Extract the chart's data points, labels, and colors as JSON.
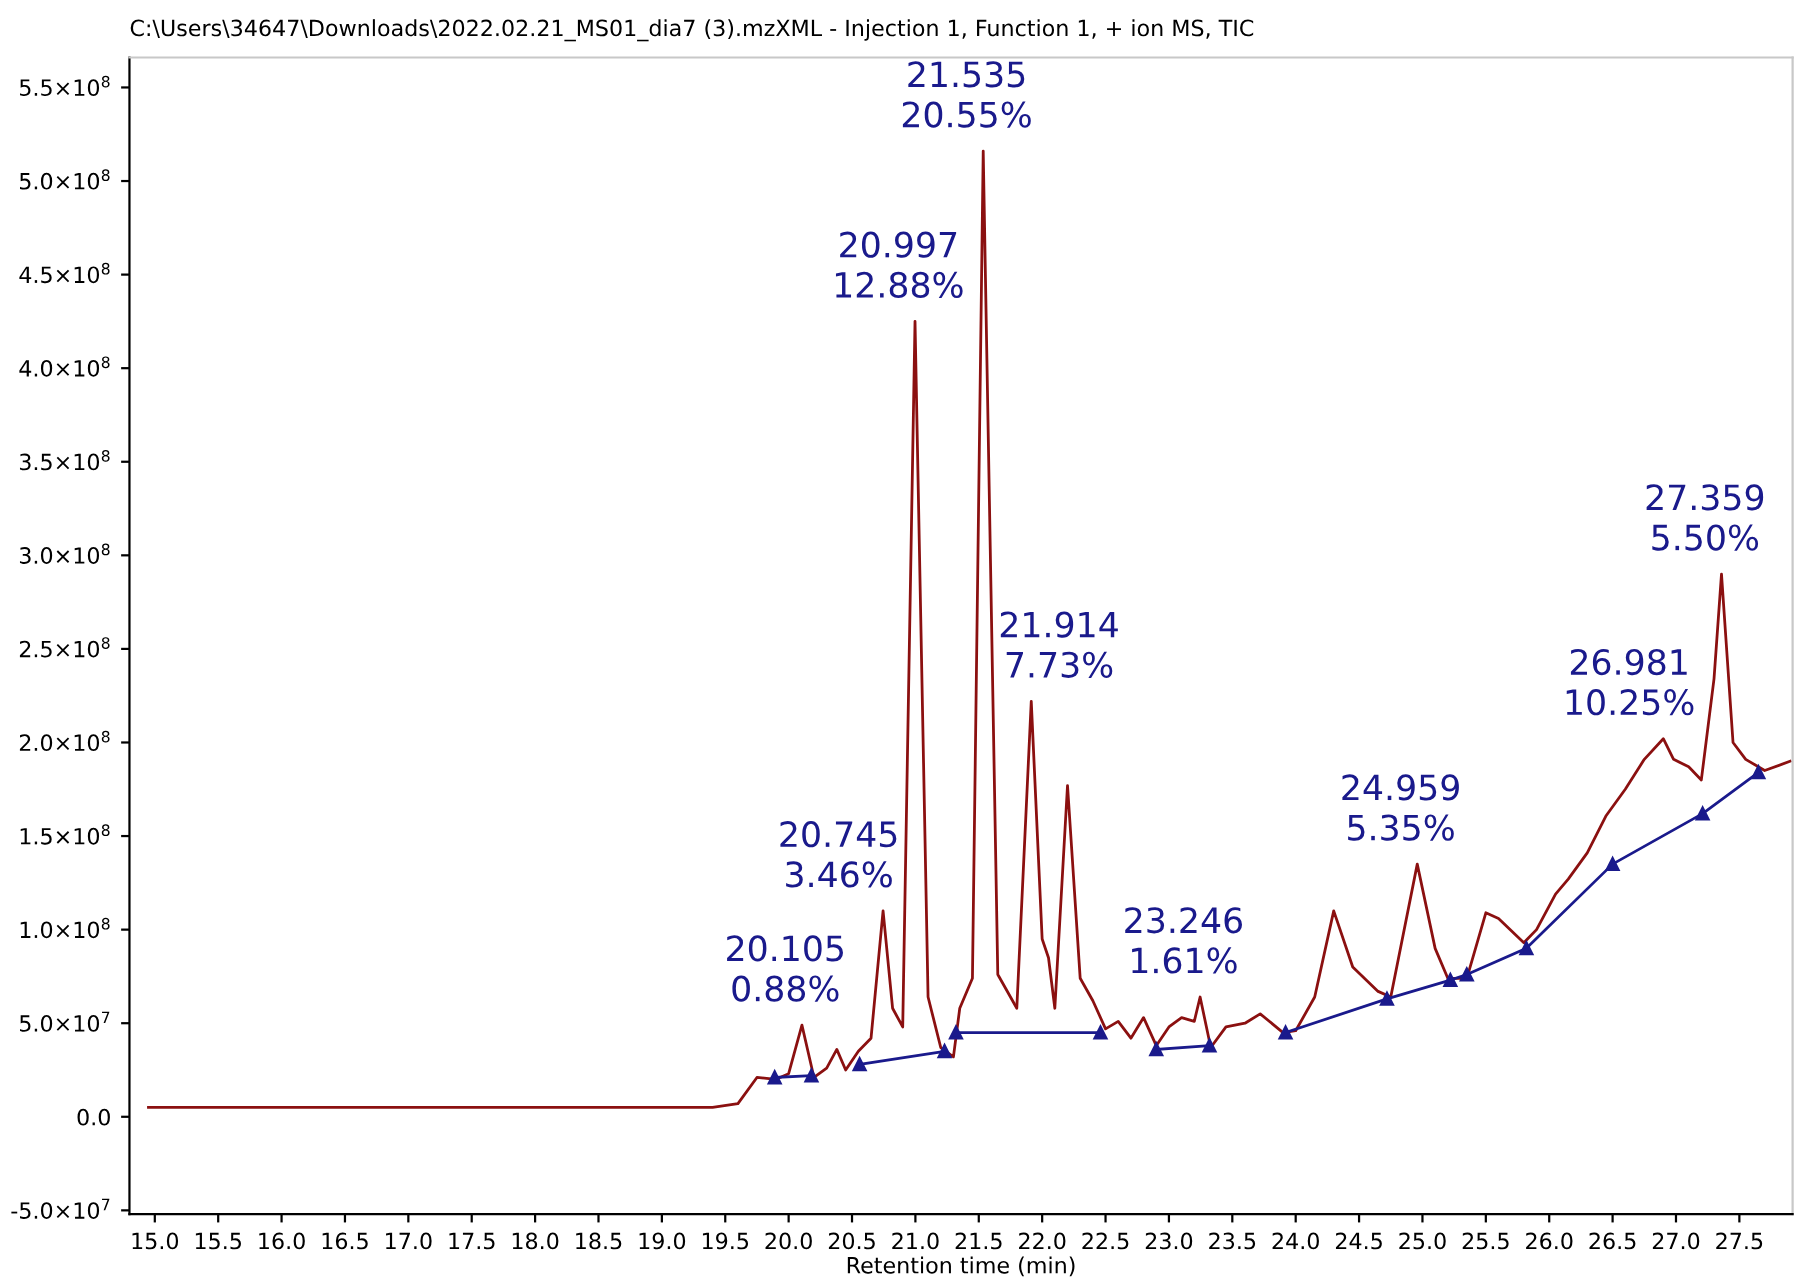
{
  "chart_data": {
    "type": "line",
    "title": "C:\\Users\\34647\\Downloads\\2022.02.21_MS01_dia7 (3).mzXML - Injection 1, Function 1, + ion MS, TIC",
    "xlabel": "Retention time (min)",
    "xlim": [
      14.8,
      27.92
    ],
    "ylim": [
      -52000000.0,
      566000000.0
    ],
    "xticks": [
      {
        "value": 15.0,
        "label": "15.0"
      },
      {
        "value": 15.5,
        "label": "15.5"
      },
      {
        "value": 16.0,
        "label": "16.0"
      },
      {
        "value": 16.5,
        "label": "16.5"
      },
      {
        "value": 17.0,
        "label": "17.0"
      },
      {
        "value": 17.5,
        "label": "17.5"
      },
      {
        "value": 18.0,
        "label": "18.0"
      },
      {
        "value": 18.5,
        "label": "18.5"
      },
      {
        "value": 19.0,
        "label": "19.0"
      },
      {
        "value": 19.5,
        "label": "19.5"
      },
      {
        "value": 20.0,
        "label": "20.0"
      },
      {
        "value": 20.5,
        "label": "20.5"
      },
      {
        "value": 21.0,
        "label": "21.0"
      },
      {
        "value": 21.5,
        "label": "21.5"
      },
      {
        "value": 22.0,
        "label": "22.0"
      },
      {
        "value": 22.5,
        "label": "22.5"
      },
      {
        "value": 23.0,
        "label": "23.0"
      },
      {
        "value": 23.5,
        "label": "23.5"
      },
      {
        "value": 24.0,
        "label": "24.0"
      },
      {
        "value": 24.5,
        "label": "24.5"
      },
      {
        "value": 25.0,
        "label": "25.0"
      },
      {
        "value": 25.5,
        "label": "25.5"
      },
      {
        "value": 26.0,
        "label": "26.0"
      },
      {
        "value": 26.5,
        "label": "26.5"
      },
      {
        "value": 27.0,
        "label": "27.0"
      },
      {
        "value": 27.5,
        "label": "27.5"
      }
    ],
    "yticks": [
      {
        "value": -50000000.0,
        "label": "-5.0×10$^{7}$"
      },
      {
        "value": 0,
        "label": "0.0"
      },
      {
        "value": 50000000.0,
        "label": "5.0×10$^{7}$"
      },
      {
        "value": 100000000.0,
        "label": "1.0×10$^{8}$"
      },
      {
        "value": 150000000.0,
        "label": "1.5×10$^{8}$"
      },
      {
        "value": 200000000.0,
        "label": "2.0×10$^{8}$"
      },
      {
        "value": 250000000.0,
        "label": "2.5×10$^{8}$"
      },
      {
        "value": 300000000.0,
        "label": "3.0×10$^{8}$"
      },
      {
        "value": 350000000.0,
        "label": "3.5×10$^{8}$"
      },
      {
        "value": 400000000.0,
        "label": "4.0×10$^{8}$"
      },
      {
        "value": 450000000.0,
        "label": "4.5×10$^{8}$"
      },
      {
        "value": 500000000.0,
        "label": "5.0×10$^{8}$"
      },
      {
        "value": 550000000.0,
        "label": "5.5×10$^{8}$"
      }
    ],
    "grid": false,
    "legend": false,
    "series": [
      {
        "color": "#8b1010",
        "x": [
          14.95,
          15.5,
          16.0,
          16.5,
          17.0,
          17.5,
          18.0,
          18.5,
          19.0,
          19.4,
          19.6,
          19.75,
          19.9,
          20.0,
          20.105,
          20.2,
          20.3,
          20.38,
          20.45,
          20.55,
          20.65,
          20.745,
          20.82,
          20.9,
          20.997,
          21.1,
          21.2,
          21.3,
          21.35,
          21.45,
          21.535,
          21.65,
          21.75,
          21.8,
          21.914,
          22.0,
          22.05,
          22.1,
          22.2,
          22.3,
          22.4,
          22.5,
          22.6,
          22.7,
          22.8,
          22.9,
          23.0,
          23.1,
          23.2,
          23.246,
          23.33,
          23.45,
          23.6,
          23.72,
          23.9,
          24.0,
          24.15,
          24.3,
          24.45,
          24.65,
          24.75,
          24.959,
          25.1,
          25.2,
          25.35,
          25.5,
          25.6,
          25.8,
          25.9,
          26.05,
          26.15,
          26.3,
          26.45,
          26.6,
          26.75,
          26.9,
          26.981,
          27.1,
          27.2,
          27.3,
          27.359,
          27.45,
          27.55,
          27.7,
          27.9
        ],
        "values": [
          5000000.0,
          5000000.0,
          5000000.0,
          5000000.0,
          5000000.0,
          5000000.0,
          5000000.0,
          5000000.0,
          5000000.0,
          5000000.0,
          7000000.0,
          21000000.0,
          20000000.0,
          23000000.0,
          49000000.0,
          21000000.0,
          26000000.0,
          36000000.0,
          25000000.0,
          35000000.0,
          42000000.0,
          110000000.0,
          58000000.0,
          48000000.0,
          425000000.0,
          64000000.0,
          37000000.0,
          32000000.0,
          58000000.0,
          74000000.0,
          516000000.0,
          76000000.0,
          64000000.0,
          58000000.0,
          222000000.0,
          95000000.0,
          85000000.0,
          58000000.0,
          177000000.0,
          74000000.0,
          62000000.0,
          47000000.0,
          51000000.0,
          42000000.0,
          53000000.0,
          38000000.0,
          48000000.0,
          53000000.0,
          51000000.0,
          64000000.0,
          37000000.0,
          48000000.0,
          50000000.0,
          55000000.0,
          45000000.0,
          46000000.0,
          64000000.0,
          110000000.0,
          80000000.0,
          67000000.0,
          64000000.0,
          135000000.0,
          90000000.0,
          74000000.0,
          74000000.0,
          109000000.0,
          106000000.0,
          93000000.0,
          100000000.0,
          119000000.0,
          127000000.0,
          141000000.0,
          161000000.0,
          175000000.0,
          191000000.0,
          202000000.0,
          191000000.0,
          187000000.0,
          180000000.0,
          234000000.0,
          290000000.0,
          200000000.0,
          191000000.0,
          185000000.0,
          190000000.0
        ]
      },
      {
        "color": "#1a1a8c",
        "marker": "triangle",
        "x": [
          19.89,
          20.18,
          20.19,
          20.56,
          21.23,
          21.24,
          21.32,
          22.46,
          22.47,
          22.9,
          23.32,
          23.33,
          23.92,
          24.72,
          25.22,
          25.35,
          25.82,
          26.5,
          27.21,
          27.65
        ],
        "values": [
          21000000.0,
          22000000.0,
          null,
          28000000.0,
          35000000.0,
          null,
          45000000.0,
          45000000.0,
          null,
          36000000.0,
          38000000.0,
          null,
          45000000.0,
          63000000.0,
          73000000.0,
          76000000.0,
          90000000.0,
          135000000.0,
          162000000.0,
          184000000.0
        ]
      }
    ],
    "annotations": [
      {
        "text": "20.105\n0.88%",
        "x": 20.105,
        "y": 49000000.0
      },
      {
        "text": "20.745\n3.46%",
        "x": 20.745,
        "y": 110000000.0
      },
      {
        "text": "20.997\n12.88%",
        "x": 20.997,
        "y": 425000000.0
      },
      {
        "text": "21.535\n20.55%",
        "x": 21.535,
        "y": 516000000.0
      },
      {
        "text": "21.914\n7.73%",
        "x": 21.914,
        "y": 222000000.0
      },
      {
        "text": "23.246\n1.61%",
        "x": 23.246,
        "y": 64000000.0
      },
      {
        "text": "24.959\n5.35%",
        "x": 24.959,
        "y": 135000000.0
      },
      {
        "text": "26.981\n10.25%",
        "x": 26.981,
        "y": 202000000.0
      },
      {
        "text": "27.359\n5.50%",
        "x": 27.359,
        "y": 290000000.0
      }
    ]
  }
}
